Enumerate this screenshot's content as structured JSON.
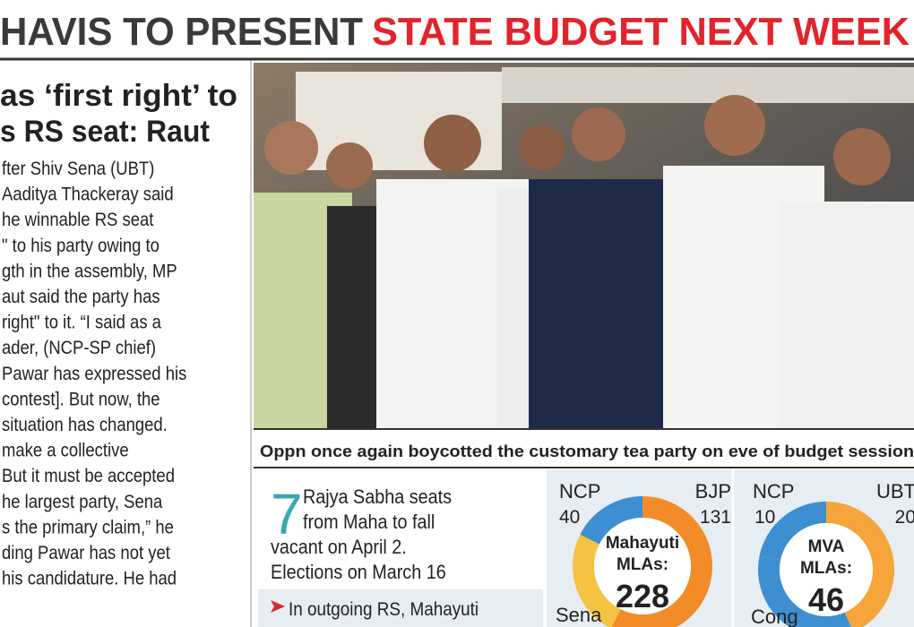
{
  "banner": {
    "dark": "HAVIS TO PRESENT",
    "red": "STATE BUDGET NEXT WEEK"
  },
  "article": {
    "headline": [
      "as ‘first right’ to",
      "s RS seat: Raut"
    ],
    "body": [
      "fter Shiv Sena (UBT)",
      "Aaditya Thackeray said",
      "he winnable RS seat",
      "\" to his party owing to",
      "gth in the assembly, MP",
      "aut said the party has",
      "right\" to it. “I said as a",
      "ader, (NCP-SP chief)",
      "Pawar has expressed his",
      "contest]. But now, the",
      "situation has changed.",
      "make a collective",
      "But it must be accepted",
      "he largest party, Sena",
      "s the primary claim,” he",
      "ding Pawar has not yet",
      "his candidature. He had"
    ]
  },
  "photo_caption": "Oppn once again boycotted the customary tea party on eve of budget session",
  "fact": {
    "number": 7,
    "text": [
      "Rajya Sabha seats",
      "from Maha to fall",
      "vacant on April 2.",
      "Elections on March 16"
    ],
    "note": "In outgoing RS, Mahayuti"
  },
  "charts": [
    {
      "type": "donut",
      "center": [
        "Mahayuti",
        "MLAs:"
      ],
      "total": 228,
      "segments": [
        {
          "name": "NCP",
          "value": 40,
          "color": "#3d8fd1"
        },
        {
          "name": "BJP",
          "value": 131,
          "color": "#f28c28"
        },
        {
          "name": "Sena",
          "value": null,
          "color": "#f5c242"
        }
      ]
    },
    {
      "type": "donut",
      "center": [
        "MVA",
        "MLAs:"
      ],
      "total": 46,
      "segments": [
        {
          "name": "NCP",
          "value": 10,
          "color": "#3d8fd1"
        },
        {
          "name": "UBT",
          "value": 20,
          "color": "#f5a53a"
        },
        {
          "name": "Cong",
          "value": null,
          "color": "#3d8fd1"
        }
      ]
    }
  ]
}
